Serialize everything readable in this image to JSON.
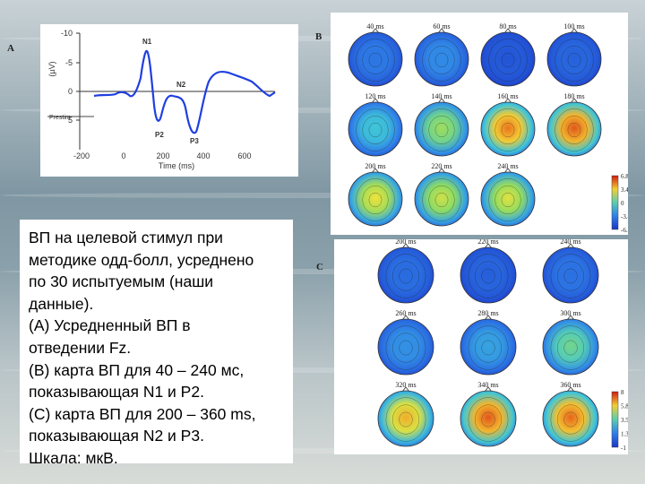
{
  "panel_letters": {
    "a": "A",
    "b": "B",
    "c": "C"
  },
  "plot": {
    "y_ticks": [
      "-10",
      "-5",
      "0",
      "5"
    ],
    "y_unit": "(µV)",
    "x_ticks": [
      "-200",
      "0",
      "200",
      "400",
      "600"
    ],
    "x_label": "Time (ms)",
    "peaks": [
      "N1",
      "N2",
      "P2",
      "P3"
    ],
    "stimulus_label": "Prestim"
  },
  "maps_b": {
    "labels": [
      "40 ms",
      "60 ms",
      "80 ms",
      "100 ms",
      "120 ms",
      "140 ms",
      "160 ms",
      "180 ms",
      "200 ms",
      "220 ms",
      "240 ms"
    ],
    "heat": [
      0.22,
      0.28,
      0.1,
      0.15,
      0.45,
      0.62,
      0.88,
      0.92,
      0.72,
      0.68,
      0.7
    ],
    "scale": [
      "6.8",
      "3.4",
      "0",
      "-3.4",
      "-6.8"
    ]
  },
  "maps_c": {
    "labels": [
      "200 ms",
      "220 ms",
      "240 ms",
      "260 ms",
      "280 ms",
      "300 ms",
      "320 ms",
      "340 ms",
      "360 ms"
    ],
    "heat": [
      0.18,
      0.14,
      0.2,
      0.3,
      0.35,
      0.55,
      0.8,
      0.92,
      0.9
    ],
    "scale": [
      "8",
      "5.8",
      "3.5",
      "1.3",
      "-1"
    ]
  },
  "caption": {
    "lines": [
      "ВП на целевой стимул при",
      "методике одд-болл, усреднено",
      "по 30 испытуемым (наши",
      "данные).",
      "(А) Усредненный ВП в",
      "отведении Fz.",
      "(В) карта ВП для 40 – 240 мс,",
      "показывающая N1 и P2.",
      "(С) карта ВП для 200 – 360 ms,",
      "показывающая N2 и P3.",
      "Шкала: мкВ."
    ]
  },
  "colors": {
    "waveform": "#1f3fe0",
    "accent_red": "#d01a10",
    "accent_blue": "#1a35c8"
  }
}
